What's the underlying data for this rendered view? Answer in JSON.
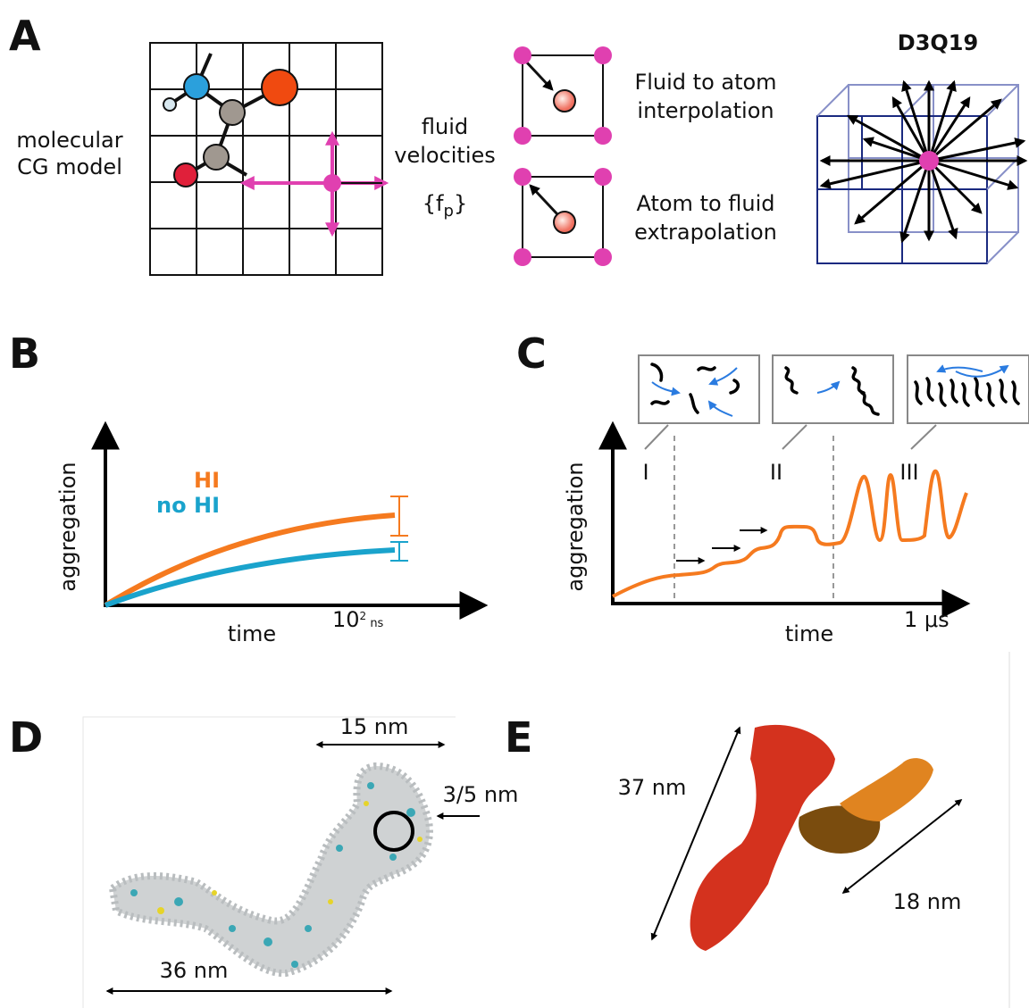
{
  "panels": {
    "a": {
      "letter": "A",
      "model_label": [
        "molecular",
        "CG model"
      ],
      "fluid_label": [
        "fluid",
        "velocities"
      ],
      "force": {
        "open": "{f",
        "subscript": "p",
        "close": "}"
      },
      "interpolation": [
        "Fluid to atom",
        "interpolation"
      ],
      "extrapolation": [
        "Atom to fluid",
        "extrapolation"
      ],
      "lattice": "D3Q19"
    },
    "b": {
      "letter": "B",
      "y_label": "aggregation",
      "x_label": "time",
      "scale": {
        "base": "10",
        "exponent": "2",
        "unit": " ns"
      },
      "legend": [
        "HI",
        "no HI"
      ]
    },
    "c": {
      "letter": "C",
      "y_label": "aggregation",
      "x_label": "time",
      "scale": "1 μs",
      "stages": [
        "I",
        "II",
        "III"
      ]
    },
    "d": {
      "letter": "D",
      "labels": [
        "15 nm",
        "3/5 nm",
        "36 nm"
      ]
    },
    "e": {
      "letter": "E",
      "labels": [
        "37 nm",
        "18 nm"
      ]
    }
  }
}
